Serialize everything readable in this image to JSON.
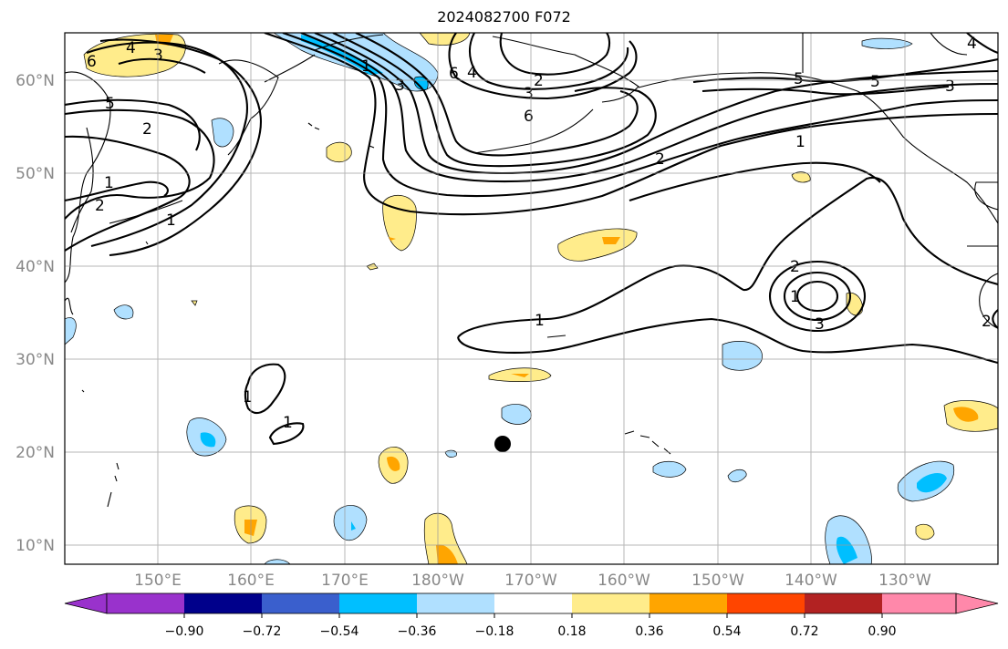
{
  "title": "2024082700 F072",
  "map": {
    "lat_ticks": [
      "60°N",
      "50°N",
      "40°N",
      "30°N",
      "20°N",
      "10°N"
    ],
    "lon_ticks": [
      "150°E",
      "160°E",
      "170°E",
      "180°W",
      "170°W",
      "160°W",
      "150°W",
      "140°W",
      "130°W"
    ],
    "contour_labels": [
      "6",
      "4",
      "3",
      "5",
      "2",
      "1",
      "2",
      "1",
      "1",
      "6",
      "4",
      "3",
      "2",
      "3",
      "6",
      "5",
      "3",
      "2",
      "1",
      "2",
      "1",
      "2",
      "3",
      "1",
      "1",
      "1",
      "5",
      "4"
    ],
    "marker": "storm center dot"
  },
  "colorbar": {
    "ticks": [
      "−0.90",
      "−0.72",
      "−0.54",
      "−0.36",
      "−0.18",
      "0.18",
      "0.36",
      "0.54",
      "0.72",
      "0.90"
    ],
    "colors": [
      "#9932cc",
      "#00008b",
      "#3a5fcd",
      "#00bfff",
      "#b0e0ff",
      "#ffffff",
      "#ffec8b",
      "#ffa500",
      "#ff4500",
      "#b22222",
      "#ff88aa"
    ]
  }
}
